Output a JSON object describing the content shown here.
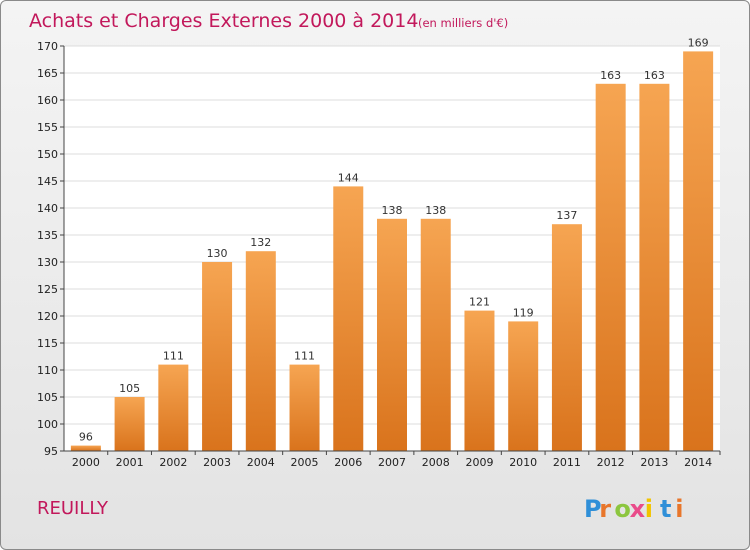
{
  "chart_data": {
    "type": "bar",
    "title": "Achats et Charges Externes 2000 à 2014",
    "subtitle": "(en milliers d'€)",
    "categories": [
      "2000",
      "2001",
      "2002",
      "2003",
      "2004",
      "2005",
      "2006",
      "2007",
      "2008",
      "2009",
      "2010",
      "2011",
      "2012",
      "2013",
      "2014"
    ],
    "values": [
      96,
      105,
      111,
      130,
      132,
      111,
      144,
      138,
      138,
      121,
      119,
      137,
      163,
      163,
      169
    ],
    "ylim": [
      95,
      170
    ],
    "yticks": [
      "95",
      "100",
      "105",
      "110",
      "115",
      "120",
      "125",
      "130",
      "135",
      "140",
      "145",
      "150",
      "155",
      "160",
      "165",
      "170"
    ],
    "grid": true,
    "bar_color": "#f0902c"
  },
  "commune": "REUILLY",
  "logo": {
    "letters": [
      "P",
      "r",
      "o",
      "x",
      "i",
      "t",
      "i"
    ],
    "colors": [
      "#2f8fd8",
      "#e8762b",
      "#8cc63f",
      "#e94b8a",
      "#f2c400",
      "#2f8fd8",
      "#e8762b"
    ]
  }
}
